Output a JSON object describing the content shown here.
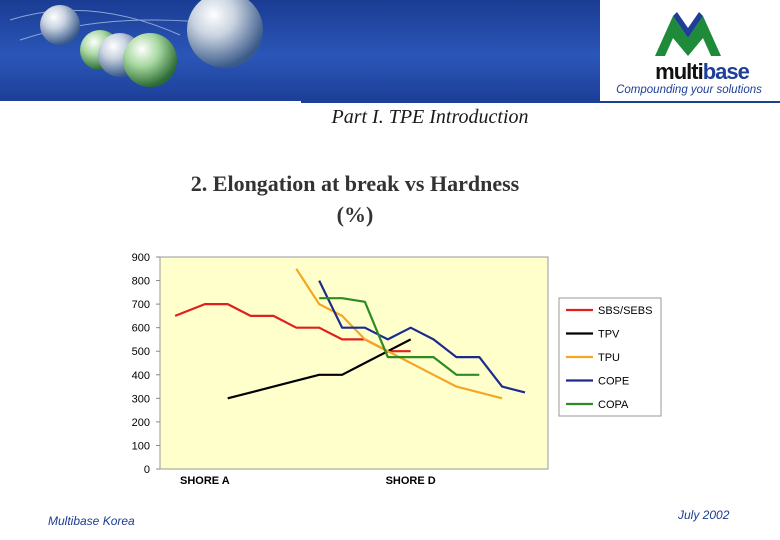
{
  "header": {
    "logo_word_1": "multi",
    "logo_word_2": "base",
    "tagline": "Compounding your solutions",
    "section_title": "Part I. TPE Introduction",
    "band_color": "#1f47a8",
    "accent_color": "#1f3f96",
    "logo_mark_color": "#1e8a3a"
  },
  "slide": {
    "title_line_1": "2. Elongation at break vs Hardness",
    "title_line_2": "(%)"
  },
  "footer": {
    "left": "Multibase Korea",
    "right": "July  2002"
  },
  "chart_data": {
    "type": "line",
    "title": "",
    "xlabel": "",
    "ylabel": "",
    "ylim": [
      0,
      900
    ],
    "yticks": [
      0,
      100,
      200,
      300,
      400,
      500,
      600,
      700,
      800,
      900
    ],
    "xlim": [
      0,
      16
    ],
    "xtick_positions": [
      2,
      11
    ],
    "xtick_labels": [
      "SHORE A",
      "SHORE D"
    ],
    "grid": false,
    "legend_position": "right",
    "plot_background": "#ffffcc",
    "series": [
      {
        "name": "SBS/SEBS",
        "color": "#e02020",
        "x": [
          0.7,
          2,
          3,
          4,
          5,
          6,
          7,
          8,
          9,
          10,
          11
        ],
        "y": [
          650,
          700,
          700,
          650,
          650,
          600,
          600,
          550,
          550,
          500,
          500
        ]
      },
      {
        "name": "TPV",
        "color": "#000000",
        "x": [
          3,
          5,
          6,
          7,
          8,
          9,
          10,
          11
        ],
        "y": [
          300,
          350,
          375,
          400,
          400,
          450,
          500,
          550
        ]
      },
      {
        "name": "TPU",
        "color": "#f5a623",
        "x": [
          6,
          7,
          8,
          9,
          10,
          11,
          12,
          13,
          14,
          15
        ],
        "y": [
          850,
          700,
          650,
          550,
          500,
          450,
          400,
          350,
          325,
          300
        ]
      },
      {
        "name": "COPE",
        "color": "#1c2c8c",
        "x": [
          7,
          8,
          9,
          10,
          11,
          12,
          13,
          14,
          15,
          16
        ],
        "y": [
          800,
          600,
          600,
          550,
          600,
          550,
          475,
          475,
          350,
          325
        ]
      },
      {
        "name": "COPA",
        "color": "#2e8b22",
        "x": [
          7,
          8,
          9,
          10,
          11,
          12,
          13,
          14
        ],
        "y": [
          725,
          725,
          710,
          475,
          475,
          475,
          400,
          400
        ]
      }
    ]
  }
}
